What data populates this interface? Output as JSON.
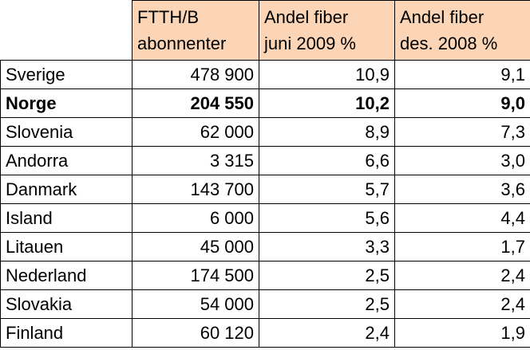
{
  "chart_data": {
    "type": "table",
    "columns": [
      "",
      "FTTH/B abonnenter",
      "Andel fiber juni 2009 %",
      "Andel fiber des. 2008 %"
    ],
    "header_lines": [
      [
        "FTTH/B",
        "abonnenter"
      ],
      [
        "Andel fiber",
        "juni 2009 %"
      ],
      [
        "Andel fiber",
        "des. 2008 %"
      ]
    ],
    "rows": [
      {
        "country": "Sverige",
        "subscribers": "478 900",
        "share_jun_2009": "10,9",
        "share_dec_2008": "9,1",
        "highlight": false
      },
      {
        "country": "Norge",
        "subscribers": "204 550",
        "share_jun_2009": "10,2",
        "share_dec_2008": "9,0",
        "highlight": true
      },
      {
        "country": "Slovenia",
        "subscribers": "62 000",
        "share_jun_2009": "8,9",
        "share_dec_2008": "7,3",
        "highlight": false
      },
      {
        "country": "Andorra",
        "subscribers": "3 315",
        "share_jun_2009": "6,6",
        "share_dec_2008": "3,0",
        "highlight": false
      },
      {
        "country": "Danmark",
        "subscribers": "143 700",
        "share_jun_2009": "5,7",
        "share_dec_2008": "3,6",
        "highlight": false
      },
      {
        "country": "Island",
        "subscribers": "6 000",
        "share_jun_2009": "5,6",
        "share_dec_2008": "4,4",
        "highlight": false
      },
      {
        "country": "Litauen",
        "subscribers": "45 000",
        "share_jun_2009": "3,3",
        "share_dec_2008": "1,7",
        "highlight": false
      },
      {
        "country": "Nederland",
        "subscribers": "174 500",
        "share_jun_2009": "2,5",
        "share_dec_2008": "2,4",
        "highlight": false
      },
      {
        "country": "Slovakia",
        "subscribers": "54 000",
        "share_jun_2009": "2,5",
        "share_dec_2008": "2,4",
        "highlight": false
      },
      {
        "country": "Finland",
        "subscribers": "60 120",
        "share_jun_2009": "2,4",
        "share_dec_2008": "1,9",
        "highlight": false
      }
    ],
    "colors": {
      "header_fill": "#fbd5b5",
      "border": "#000000"
    }
  }
}
